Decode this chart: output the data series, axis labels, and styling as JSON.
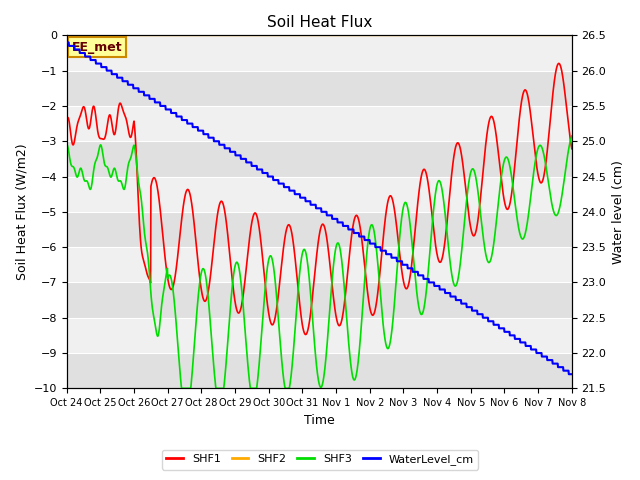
{
  "title": "Soil Heat Flux",
  "ylabel_left": "Soil Heat Flux (W/m2)",
  "ylabel_right": "Water level (cm)",
  "xlabel": "Time",
  "ylim_left": [
    -10.0,
    0.0
  ],
  "ylim_right": [
    21.5,
    26.5
  ],
  "xtick_labels": [
    "Oct 24",
    "Oct 25",
    "Oct 26",
    "Oct 27",
    "Oct 28",
    "Oct 29",
    "Oct 30",
    "Oct 31",
    "Nov 1",
    "Nov 2",
    "Nov 3",
    "Nov 4",
    "Nov 5",
    "Nov 6",
    "Nov 7",
    "Nov 8"
  ],
  "colors": {
    "SHF1": "#ff0000",
    "SHF2": "#ffaa00",
    "SHF3": "#00dd00",
    "WaterLevel_cm": "#0000ff",
    "bg_light": "#f0f0f0",
    "bg_dark": "#e0e0e0",
    "annotation_bg": "#ffff99",
    "annotation_border": "#cc8800"
  },
  "annotation_text": "EE_met",
  "legend_entries": [
    "SHF1",
    "SHF2",
    "SHF3",
    "WaterLevel_cm"
  ],
  "n_days": 15
}
